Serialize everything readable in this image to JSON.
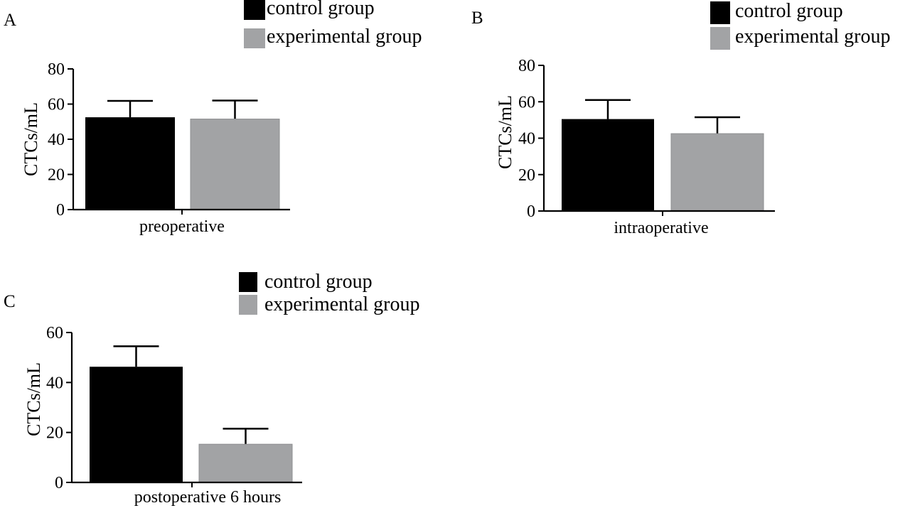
{
  "colors": {
    "control": "#000000",
    "experimental": "#a2a3a5",
    "axis": "#000000"
  },
  "chart_data": [
    {
      "type": "bar",
      "panel": "A",
      "categories": [
        "preoperative"
      ],
      "series": [
        {
          "name": "control group",
          "values": [
            52.5
          ],
          "error": [
            9.3
          ]
        },
        {
          "name": "experimental group",
          "values": [
            51.5
          ],
          "error": [
            10.5
          ]
        }
      ],
      "xlabel": "preoperative",
      "ylabel": "CTCs/mL",
      "ylim": [
        0,
        80
      ],
      "yticks": [
        0,
        20,
        40,
        60,
        80
      ],
      "legend": "top-right",
      "grid": false
    },
    {
      "type": "bar",
      "panel": "B",
      "categories": [
        "intraoperative"
      ],
      "series": [
        {
          "name": "control group",
          "values": [
            50.5
          ],
          "error": [
            10.5
          ]
        },
        {
          "name": "experimental group",
          "values": [
            42.5
          ],
          "error": [
            9.0
          ]
        }
      ],
      "xlabel": "intraoperative",
      "ylabel": "CTCs/mL",
      "ylim": [
        0,
        80
      ],
      "yticks": [
        0,
        20,
        40,
        60,
        80
      ],
      "legend": "top-right",
      "grid": false
    },
    {
      "type": "bar",
      "panel": "C",
      "categories": [
        "postoperative 6 hours"
      ],
      "series": [
        {
          "name": "control group",
          "values": [
            46.3
          ],
          "error": [
            8.2
          ]
        },
        {
          "name": "experimental group",
          "values": [
            15.3
          ],
          "error": [
            6.2
          ]
        }
      ],
      "xlabel": "postoperative 6 hours",
      "ylabel": "CTCs/mL",
      "ylim": [
        0,
        60
      ],
      "yticks": [
        0,
        20,
        40,
        60
      ],
      "legend": "top-right",
      "grid": false
    }
  ]
}
